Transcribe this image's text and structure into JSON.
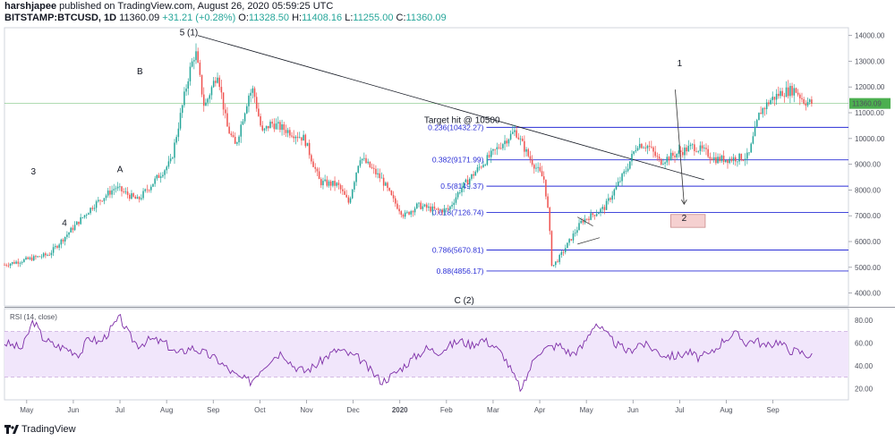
{
  "header": {
    "author": "harshjapee",
    "published": "published on TradingView.com, August 26, 2020 05:59:25 UTC",
    "symbol": "BITSTAMP:BTCUSD, 1D",
    "price": "11360.09",
    "change": "+31.21 (+0.28%)",
    "o_label": "O:",
    "o_value": "11328.50",
    "h_label": "H:",
    "h_value": "11408.16",
    "l_label": "L:",
    "l_value": "11255.00",
    "c_label": "C:",
    "c_value": "11360.09"
  },
  "footer": {
    "brand": "TradingView"
  },
  "colors": {
    "up": "#26a69a",
    "down": "#ef5350",
    "fib": "#2a2ed6",
    "rsi": "#7e2fa8",
    "rsi_band": "#f1e6fb",
    "price_line": "#4caf50"
  },
  "chart_data": [
    {
      "type": "candlestick",
      "title": "BITSTAMP:BTCUSD, 1D",
      "price_axis": {
        "ticks": [
          "14000.00",
          "13000.00",
          "12000.00",
          "11000.00",
          "10000.00",
          "9000.00",
          "8000.00",
          "7000.00",
          "6000.00",
          "5000.00",
          "4000.00"
        ],
        "range": [
          3500,
          14300
        ],
        "current_price_label": "11360.09",
        "current_price": 11360.09
      },
      "time_axis": {
        "ticks": [
          "May",
          "Jun",
          "Jul",
          "Aug",
          "Sep",
          "Oct",
          "Nov",
          "Dec",
          "2020",
          "Feb",
          "Mar",
          "Apr",
          "May",
          "Jun",
          "Jul",
          "Aug",
          "Sep"
        ]
      },
      "price_path": [
        [
          0,
          5100
        ],
        [
          2,
          5500
        ],
        [
          4,
          7400
        ],
        [
          5,
          8100
        ],
        [
          6,
          7600
        ],
        [
          7.5,
          9100
        ],
        [
          8.3,
          12500
        ],
        [
          8.6,
          13400
        ],
        [
          9,
          11200
        ],
        [
          9.6,
          12600
        ],
        [
          10,
          10500
        ],
        [
          10.4,
          9700
        ],
        [
          11,
          11700
        ],
        [
          11.2,
          11900
        ],
        [
          11.6,
          10200
        ],
        [
          12,
          10600
        ],
        [
          13,
          10200
        ],
        [
          13.5,
          10000
        ],
        [
          14.2,
          8300
        ],
        [
          15,
          8200
        ],
        [
          15.5,
          7500
        ],
        [
          16,
          9300
        ],
        [
          17,
          8400
        ],
        [
          17.5,
          7600
        ],
        [
          18,
          7000
        ],
        [
          18.6,
          7400
        ],
        [
          19.5,
          7200
        ],
        [
          20,
          7250
        ],
        [
          20.5,
          8000
        ],
        [
          21.5,
          9000
        ],
        [
          22.4,
          9800
        ],
        [
          23,
          10300
        ],
        [
          23.6,
          9300
        ],
        [
          24.3,
          8400
        ],
        [
          24.5,
          7000
        ],
        [
          24.65,
          5000
        ],
        [
          25,
          5400
        ],
        [
          26,
          6800
        ],
        [
          27,
          7300
        ],
        [
          28,
          8800
        ],
        [
          28.5,
          9800
        ],
        [
          29,
          9700
        ],
        [
          29.5,
          9100
        ],
        [
          30,
          9300
        ],
        [
          31,
          9700
        ],
        [
          31.5,
          9500
        ],
        [
          32,
          9200
        ],
        [
          32.6,
          9200
        ],
        [
          33.5,
          9300
        ],
        [
          34,
          11000
        ],
        [
          34.5,
          11500
        ],
        [
          35,
          11800
        ],
        [
          35.6,
          11900
        ],
        [
          36,
          11450
        ],
        [
          36.4,
          11360
        ]
      ],
      "fib_levels": [
        {
          "label": "0.236(10432.27)",
          "value": 10432.27
        },
        {
          "label": "0.382(9171.99)",
          "value": 9171.99
        },
        {
          "label": "0.5(8149.37)",
          "value": 8149.37
        },
        {
          "label": "0.618(7126.74)",
          "value": 7126.74
        },
        {
          "label": "0.786(5670.81)",
          "value": 5670.81
        },
        {
          "label": "0.88(4856.17)",
          "value": 4856.17
        }
      ],
      "annotations": [
        {
          "text": "5 (1)",
          "t": 8.3,
          "price": 14000
        },
        {
          "text": "3",
          "t": 1.3,
          "price": 8600
        },
        {
          "text": "4",
          "t": 2.7,
          "price": 6600
        },
        {
          "text": "B",
          "t": 6.1,
          "price": 12500
        },
        {
          "text": "A",
          "t": 5.2,
          "price": 8700
        },
        {
          "text": "Target hit @ 10500",
          "t": 20.6,
          "price": 10600
        },
        {
          "text": "C (2)",
          "t": 20.7,
          "price": 3600
        },
        {
          "text": "1",
          "t": 30.4,
          "price": 12800
        },
        {
          "text": "2",
          "t": 30.6,
          "price": 6800
        }
      ]
    },
    {
      "type": "line",
      "title": "RSI (14, close)",
      "y_ticks": [
        "80.00",
        "60.00",
        "40.00",
        "20.00"
      ],
      "ylim": [
        10,
        90
      ],
      "band": [
        30,
        70
      ],
      "values": [
        [
          0,
          60
        ],
        [
          0.8,
          55
        ],
        [
          1.3,
          80
        ],
        [
          1.7,
          65
        ],
        [
          2.2,
          58
        ],
        [
          2.8,
          55
        ],
        [
          3.4,
          50
        ],
        [
          3.8,
          65
        ],
        [
          4.3,
          60
        ],
        [
          5.2,
          82
        ],
        [
          5.6,
          67
        ],
        [
          6,
          58
        ],
        [
          6.6,
          63
        ],
        [
          7.2,
          60
        ],
        [
          7.8,
          50
        ],
        [
          8.4,
          56
        ],
        [
          9,
          51
        ],
        [
          9.6,
          45
        ],
        [
          10,
          38
        ],
        [
          10.5,
          30
        ],
        [
          11.1,
          26
        ],
        [
          11.5,
          36
        ],
        [
          12,
          46
        ],
        [
          12.5,
          52
        ],
        [
          13,
          40
        ],
        [
          13.5,
          35
        ],
        [
          14,
          40
        ],
        [
          14.5,
          48
        ],
        [
          15,
          54
        ],
        [
          15.5,
          50
        ],
        [
          16,
          46
        ],
        [
          16.5,
          35
        ],
        [
          17,
          26
        ],
        [
          17.5,
          32
        ],
        [
          18,
          40
        ],
        [
          18.5,
          48
        ],
        [
          19,
          55
        ],
        [
          19.5,
          52
        ],
        [
          20,
          57
        ],
        [
          20.5,
          62
        ],
        [
          21,
          58
        ],
        [
          21.5,
          63
        ],
        [
          22,
          58
        ],
        [
          22.5,
          48
        ],
        [
          23,
          28
        ],
        [
          23.3,
          18
        ],
        [
          23.6,
          35
        ],
        [
          24,
          52
        ],
        [
          24.5,
          56
        ],
        [
          25,
          58
        ],
        [
          25.5,
          50
        ],
        [
          26,
          56
        ],
        [
          26.6,
          78
        ],
        [
          27.2,
          65
        ],
        [
          27.6,
          58
        ],
        [
          28.1,
          52
        ],
        [
          28.6,
          60
        ],
        [
          29.2,
          55
        ],
        [
          29.6,
          50
        ],
        [
          30.2,
          48
        ],
        [
          30.8,
          52
        ],
        [
          31.2,
          47
        ],
        [
          31.8,
          50
        ],
        [
          32.4,
          63
        ],
        [
          32.9,
          68
        ],
        [
          33.4,
          60
        ],
        [
          33.8,
          63
        ],
        [
          34.3,
          56
        ],
        [
          34.8,
          62
        ],
        [
          35.3,
          54
        ],
        [
          35.8,
          52
        ],
        [
          36.4,
          48
        ]
      ]
    }
  ]
}
